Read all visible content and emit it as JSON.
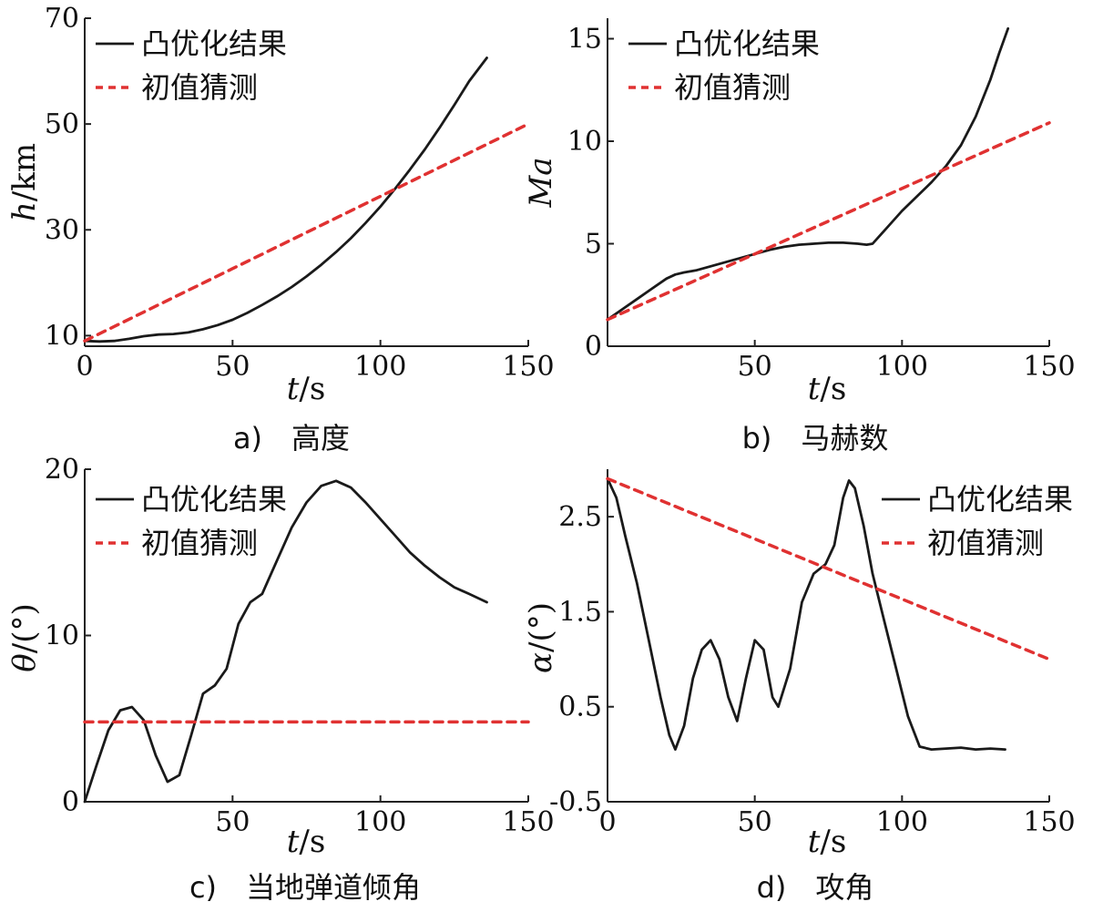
{
  "chart_data": [
    {
      "id": "a",
      "type": "line",
      "caption": "a)　高度",
      "xlabel": "t/s",
      "ylabel": "h/km",
      "xlim": [
        0,
        150
      ],
      "ylim": [
        8,
        70
      ],
      "xticks": [
        0,
        50,
        100,
        150
      ],
      "yticks": [
        10,
        30,
        50,
        70
      ],
      "legend_position": "top-left",
      "series": [
        {
          "name": "凸优化结果",
          "color": "#1a1a1a",
          "dash": "solid",
          "x": [
            0,
            5,
            10,
            15,
            20,
            25,
            30,
            35,
            40,
            45,
            50,
            55,
            60,
            65,
            70,
            75,
            80,
            85,
            90,
            95,
            100,
            105,
            110,
            115,
            120,
            125,
            130,
            136
          ],
          "y": [
            9,
            8.9,
            9,
            9.4,
            9.9,
            10.2,
            10.3,
            10.6,
            11.2,
            12,
            13,
            14.3,
            15.8,
            17.4,
            19.2,
            21.2,
            23.4,
            25.8,
            28.4,
            31.3,
            34.4,
            37.8,
            41.4,
            45.2,
            49.3,
            53.6,
            58.1,
            62.5
          ]
        },
        {
          "name": "初值猜测",
          "color": "#e03131",
          "dash": "dashed",
          "x": [
            0,
            150
          ],
          "y": [
            9,
            50
          ]
        }
      ]
    },
    {
      "id": "b",
      "type": "line",
      "caption": "b)　马赫数",
      "xlabel": "t/s",
      "ylabel": "Ma",
      "xlim": [
        0,
        150
      ],
      "ylim": [
        0,
        16
      ],
      "xticks": [
        50,
        100,
        150
      ],
      "yticks": [
        0,
        5,
        10,
        15
      ],
      "legend_position": "top-left",
      "series": [
        {
          "name": "凸优化结果",
          "color": "#1a1a1a",
          "dash": "solid",
          "x": [
            0,
            5,
            10,
            15,
            20,
            23,
            26,
            30,
            35,
            40,
            45,
            50,
            55,
            60,
            65,
            70,
            75,
            80,
            85,
            88,
            90,
            95,
            100,
            105,
            110,
            115,
            120,
            125,
            130,
            133,
            136
          ],
          "y": [
            1.3,
            1.8,
            2.3,
            2.8,
            3.3,
            3.5,
            3.6,
            3.7,
            3.9,
            4.1,
            4.3,
            4.5,
            4.7,
            4.85,
            4.95,
            5.0,
            5.05,
            5.05,
            5.0,
            4.95,
            5.0,
            5.8,
            6.6,
            7.3,
            8.0,
            8.8,
            9.8,
            11.2,
            13.0,
            14.3,
            15.5
          ]
        },
        {
          "name": "初值猜测",
          "color": "#e03131",
          "dash": "dashed",
          "x": [
            0,
            150
          ],
          "y": [
            1.3,
            10.9
          ]
        }
      ]
    },
    {
      "id": "c",
      "type": "line",
      "caption": "c)　当地弹道倾角",
      "xlabel": "t/s",
      "ylabel": "θ/(°)",
      "xlim": [
        0,
        150
      ],
      "ylim": [
        0,
        20
      ],
      "xticks": [
        50,
        100,
        150
      ],
      "yticks": [
        0,
        10,
        20
      ],
      "legend_position": "top-left",
      "series": [
        {
          "name": "凸优化结果",
          "color": "#1a1a1a",
          "dash": "solid",
          "x": [
            0,
            4,
            8,
            12,
            16,
            20,
            24,
            28,
            32,
            36,
            40,
            44,
            48,
            52,
            56,
            60,
            65,
            70,
            75,
            80,
            85,
            90,
            95,
            100,
            105,
            110,
            115,
            120,
            125,
            130,
            136
          ],
          "y": [
            0,
            2.2,
            4.3,
            5.5,
            5.7,
            4.9,
            2.8,
            1.2,
            1.6,
            4.0,
            6.5,
            7.0,
            8.0,
            10.7,
            12.0,
            12.5,
            14.5,
            16.5,
            18.0,
            19.0,
            19.3,
            18.9,
            18.0,
            17.0,
            16.0,
            15.0,
            14.2,
            13.5,
            12.9,
            12.5,
            12.0
          ]
        },
        {
          "name": "初值猜测",
          "color": "#e03131",
          "dash": "dashed",
          "x": [
            0,
            150
          ],
          "y": [
            4.8,
            4.8
          ]
        }
      ]
    },
    {
      "id": "d",
      "type": "line",
      "caption": "d)　攻角",
      "xlabel": "t/s",
      "ylabel": "α/(°)",
      "xlim": [
        0,
        150
      ],
      "ylim": [
        -0.5,
        3.0
      ],
      "xticks": [
        0,
        50,
        100,
        150
      ],
      "yticks": [
        -0.5,
        0.5,
        1.5,
        2.5
      ],
      "legend_position": "top-right",
      "series": [
        {
          "name": "凸优化结果",
          "color": "#1a1a1a",
          "dash": "solid",
          "x": [
            0,
            3,
            6,
            10,
            14,
            18,
            21,
            23,
            26,
            29,
            32,
            35,
            38,
            41,
            44,
            47,
            50,
            53,
            56,
            58,
            62,
            66,
            70,
            74,
            77,
            80,
            82,
            84,
            87,
            90,
            94,
            98,
            102,
            106,
            110,
            115,
            120,
            125,
            130,
            135
          ],
          "y": [
            2.9,
            2.7,
            2.3,
            1.8,
            1.2,
            0.6,
            0.2,
            0.05,
            0.3,
            0.8,
            1.1,
            1.2,
            1.0,
            0.6,
            0.35,
            0.8,
            1.2,
            1.1,
            0.6,
            0.5,
            0.9,
            1.6,
            1.9,
            2.0,
            2.2,
            2.7,
            2.88,
            2.8,
            2.4,
            1.9,
            1.4,
            0.9,
            0.4,
            0.08,
            0.05,
            0.06,
            0.07,
            0.05,
            0.06,
            0.05
          ]
        },
        {
          "name": "初值猜测",
          "color": "#e03131",
          "dash": "dashed",
          "x": [
            0,
            150
          ],
          "y": [
            2.9,
            1.0
          ]
        }
      ]
    }
  ]
}
